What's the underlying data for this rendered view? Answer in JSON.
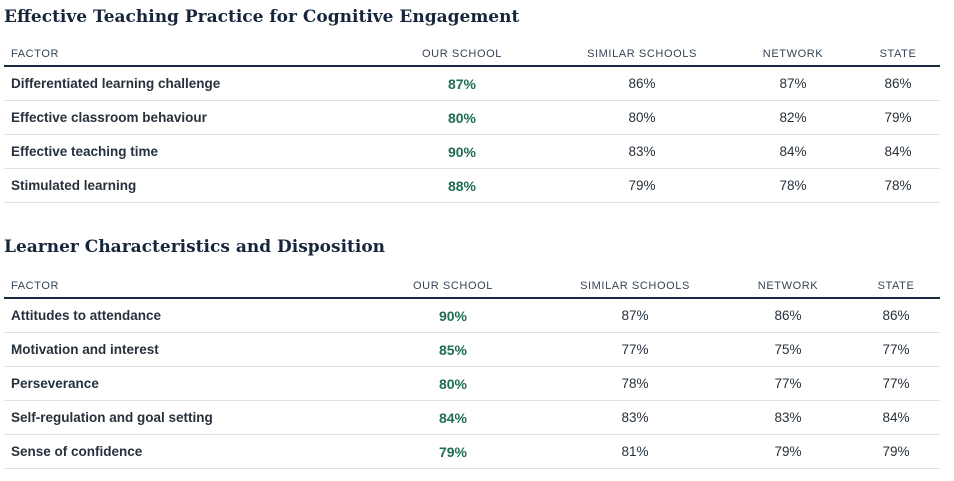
{
  "sections": [
    {
      "title": "Effective Teaching Practice for Cognitive Engagement",
      "headers": [
        "FACTOR",
        "OUR SCHOOL",
        "SIMILAR SCHOOLS",
        "NETWORK",
        "STATE"
      ],
      "rows": [
        [
          "Differentiated learning challenge",
          "87%",
          "86%",
          "87%",
          "86%"
        ],
        [
          "Effective classroom behaviour",
          "80%",
          "80%",
          "82%",
          "79%"
        ],
        [
          "Effective teaching time",
          "90%",
          "83%",
          "84%",
          "84%"
        ],
        [
          "Stimulated learning",
          "88%",
          "79%",
          "78%",
          "78%"
        ]
      ]
    },
    {
      "title": "Learner Characteristics and Disposition",
      "headers": [
        "FACTOR",
        "OUR SCHOOL",
        "SIMILAR SCHOOLS",
        "NETWORK",
        "STATE"
      ],
      "rows": [
        [
          "Attitudes to attendance",
          "90%",
          "87%",
          "86%",
          "86%"
        ],
        [
          "Motivation and interest",
          "85%",
          "77%",
          "75%",
          "77%"
        ],
        [
          "Perseverance",
          "80%",
          "78%",
          "77%",
          "77%"
        ],
        [
          "Self-regulation and goal setting",
          "84%",
          "83%",
          "83%",
          "84%"
        ],
        [
          "Sense of confidence",
          "79%",
          "81%",
          "79%",
          "79%"
        ]
      ]
    }
  ],
  "colors": {
    "our_school": "#1f6e52",
    "header_rule": "#1b2a44",
    "row_rule": "#dde2e7"
  }
}
